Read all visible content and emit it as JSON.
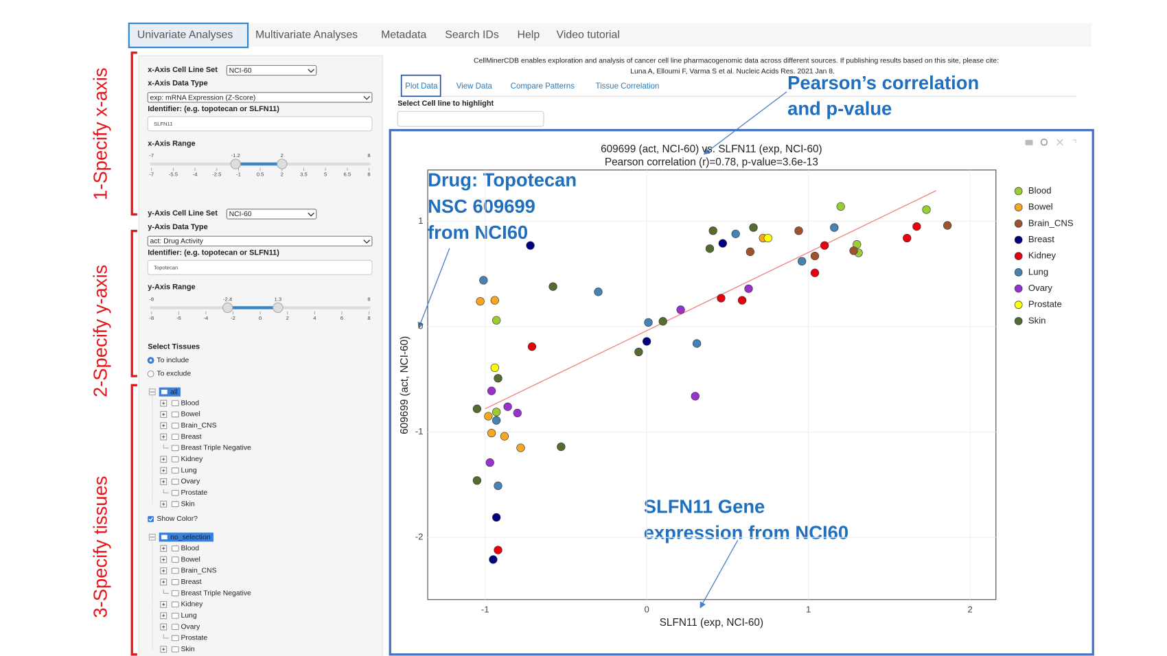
{
  "tabs": [
    "Univariate Analyses",
    "Multivariate Analyses",
    "Metadata",
    "Search IDs",
    "Help",
    "Video tutorial"
  ],
  "sidebar": {
    "x_axis": {
      "cell_line_set_label": "x-Axis Cell Line Set",
      "cell_line_set": "NCI-60",
      "data_type_label": "x-Axis Data Type",
      "data_type": "exp: mRNA Expression (Z-Score)",
      "identifier_label": "Identifier: (e.g. topotecan or SLFN11)",
      "identifier": "SLFN11",
      "range_label": "x-Axis Range",
      "range_min": -7,
      "range_max": 8,
      "selected": [
        -1.2,
        2
      ],
      "ticks": [
        -7,
        -5.5,
        -4,
        -2.5,
        -1,
        0.5,
        2,
        3.5,
        5,
        6.5,
        8
      ]
    },
    "y_axis": {
      "cell_line_set_label": "y-Axis Cell Line Set",
      "cell_line_set": "NCI-60",
      "data_type_label": "y-Axis Data Type",
      "data_type": "act: Drug Activity",
      "identifier_label": "Identifier: (e.g. topotecan or SLFN11)",
      "identifier": "Topotecan",
      "range_label": "y-Axis Range",
      "range_min": -8,
      "range_max": 8,
      "selected": [
        -2.4,
        1.3
      ],
      "ticks": [
        -8,
        -6,
        -4,
        -2,
        0,
        2,
        4,
        6,
        8
      ]
    },
    "select_tissues_label": "Select Tissues",
    "include": "To include",
    "exclude": "To exclude",
    "tree1": {
      "root": "all",
      "items": [
        {
          "label": "Blood",
          "expandable": true
        },
        {
          "label": "Bowel",
          "expandable": true
        },
        {
          "label": "Brain_CNS",
          "expandable": true
        },
        {
          "label": "Breast",
          "expandable": true
        },
        {
          "label": "Breast Triple Negative",
          "expandable": false
        },
        {
          "label": "Kidney",
          "expandable": true
        },
        {
          "label": "Lung",
          "expandable": true
        },
        {
          "label": "Ovary",
          "expandable": true
        },
        {
          "label": "Prostate",
          "expandable": false
        },
        {
          "label": "Skin",
          "expandable": true
        }
      ]
    },
    "show_color": "Show Color?",
    "tree2": {
      "root": "no_selection",
      "items": [
        {
          "label": "Blood",
          "expandable": true
        },
        {
          "label": "Bowel",
          "expandable": true
        },
        {
          "label": "Brain_CNS",
          "expandable": true
        },
        {
          "label": "Breast",
          "expandable": true
        },
        {
          "label": "Breast Triple Negative",
          "expandable": false
        },
        {
          "label": "Kidney",
          "expandable": true
        },
        {
          "label": "Lung",
          "expandable": true
        },
        {
          "label": "Ovary",
          "expandable": true
        },
        {
          "label": "Prostate",
          "expandable": false
        },
        {
          "label": "Skin",
          "expandable": true
        }
      ]
    }
  },
  "citation": "CellMinerCDB enables exploration and analysis of cancer cell line pharmacogenomic data across different sources. If publishing results based on this site, please cite:",
  "citation_link": "Luna A, Elloumi F, Varma S et al. Nucleic Acids Res. 2021 Jan 8.",
  "subtabs": [
    "Plot Data",
    "View Data",
    "Compare Patterns",
    "Tissue Correlation"
  ],
  "highlight_label": "Select Cell line to highlight",
  "annotations": {
    "steps": [
      "1-Specify x-axis",
      "2-Specify y-axis",
      "3-Specify tissues"
    ],
    "pearson": [
      "Pearson’s correlation",
      "and p-value"
    ],
    "drug": [
      "Drug: Topotecan",
      "NSC 609699",
      "from NCI60"
    ],
    "gene": [
      "SLFN11 Gene",
      "expression from NCI60"
    ]
  },
  "chart_data": {
    "type": "scatter",
    "title": "609699 (act, NCI-60) vs. SLFN11 (exp, NCI-60)",
    "subtitle": "Pearson correlation (r)=0.78, p-value=3.6e-13",
    "x_label": "SLFN11 (exp, NCI-60)",
    "y_label": "609699 (act, NCI-60)",
    "xlim": [
      -1.355,
      2.16
    ],
    "ylim": [
      -2.59,
      1.486
    ],
    "xticks": [
      -1,
      0,
      1,
      2
    ],
    "yticks": [
      -2,
      -1,
      0,
      1
    ],
    "grid": true,
    "legend": "right",
    "trendline": {
      "color": "#f08080",
      "x": [
        -1,
        1.79
      ],
      "y": [
        -0.78,
        1.29
      ]
    },
    "series": [
      {
        "name": "Blood",
        "color": "#9acd32",
        "x": [
          1.2,
          1.73,
          1.3,
          1.31,
          -0.93,
          -0.93
        ],
        "y": [
          1.14,
          1.11,
          0.78,
          0.7,
          0.06,
          -0.81
        ]
      },
      {
        "name": "Bowel",
        "color": "#f5a623",
        "x": [
          -1.03,
          -0.94,
          -0.98,
          -0.96,
          -0.88,
          -0.78,
          0.72
        ],
        "y": [
          0.24,
          0.25,
          -0.85,
          -1.01,
          -1.04,
          -1.15,
          0.84
        ]
      },
      {
        "name": "Brain_CNS",
        "color": "#a0522d",
        "x": [
          0.94,
          1.86,
          0.64,
          1.04,
          1.28
        ],
        "y": [
          0.91,
          0.96,
          0.71,
          0.67,
          0.72
        ]
      },
      {
        "name": "Breast",
        "color": "#000080",
        "x": [
          -0.72,
          0.47,
          0.0,
          -0.93,
          -0.95
        ],
        "y": [
          0.77,
          0.79,
          -0.14,
          -1.81,
          -2.21
        ]
      },
      {
        "name": "Kidney",
        "color": "#e8000b",
        "x": [
          1.67,
          1.61,
          1.1,
          1.04,
          0.46,
          0.59,
          -0.71,
          -0.92
        ],
        "y": [
          0.95,
          0.84,
          0.77,
          0.51,
          0.27,
          0.25,
          -0.19,
          -2.12
        ]
      },
      {
        "name": "Lung",
        "color": "#4682b4",
        "x": [
          -1.01,
          -0.3,
          0.55,
          1.16,
          0.96,
          0.01,
          0.31,
          -0.93,
          -0.92
        ],
        "y": [
          0.44,
          0.33,
          0.88,
          0.94,
          0.62,
          0.04,
          -0.16,
          -0.89,
          -1.51
        ]
      },
      {
        "name": "Ovary",
        "color": "#9932cc",
        "x": [
          0.63,
          0.21,
          0.3,
          -0.96,
          -0.86,
          -0.8,
          -0.97
        ],
        "y": [
          0.36,
          0.16,
          -0.66,
          -0.61,
          -0.76,
          -0.82,
          -1.29
        ]
      },
      {
        "name": "Prostate",
        "color": "#ffff00",
        "x": [
          0.75,
          -0.94
        ],
        "y": [
          0.84,
          -0.39
        ]
      },
      {
        "name": "Skin",
        "color": "#556b2f",
        "x": [
          0.41,
          0.66,
          0.39,
          -0.58,
          0.1,
          -0.05,
          -0.92,
          -1.05,
          -0.53,
          -1.05
        ],
        "y": [
          0.91,
          0.94,
          0.74,
          0.38,
          0.05,
          -0.24,
          -0.49,
          -0.78,
          -1.14,
          -1.46
        ]
      }
    ]
  }
}
